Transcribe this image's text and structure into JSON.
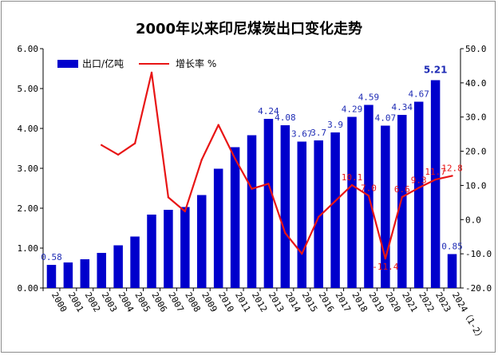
{
  "chart_data": {
    "type": "bar",
    "title": "2000年以来印尼煤炭出口变化走势",
    "categories": [
      "2000",
      "2001",
      "2002",
      "2003",
      "2004",
      "2005",
      "2006",
      "2007",
      "2008",
      "2009",
      "2010",
      "2011",
      "2012",
      "2013",
      "2014",
      "2015",
      "2016",
      "2017",
      "2018",
      "2019",
      "2020",
      "2021",
      "2022",
      "2023",
      "2024（1-2）"
    ],
    "series": [
      {
        "name": "出口/亿吨",
        "type": "bar",
        "axis": "left",
        "color": "#0000cc",
        "values": [
          0.58,
          0.64,
          0.72,
          0.88,
          1.07,
          1.29,
          1.84,
          1.96,
          2.03,
          2.33,
          2.99,
          3.53,
          3.83,
          4.24,
          4.08,
          3.67,
          3.7,
          3.9,
          4.29,
          4.59,
          4.07,
          4.34,
          4.67,
          5.21,
          0.85
        ]
      },
      {
        "name": "增长率 %",
        "type": "line",
        "axis": "right",
        "color": "#e81515",
        "values": [
          null,
          null,
          null,
          21.8,
          19.0,
          22.3,
          43.0,
          6.5,
          2.4,
          17.5,
          27.7,
          17.8,
          9.0,
          10.5,
          -3.9,
          -10.0,
          0.8,
          5.4,
          10.1,
          7.0,
          -11.4,
          6.6,
          9.3,
          11.7,
          12.8
        ]
      }
    ],
    "bar_labels": [
      {
        "index": 0,
        "text": "0.58",
        "bold": false
      },
      {
        "index": 13,
        "text": "4.24",
        "bold": false
      },
      {
        "index": 14,
        "text": "4.08",
        "bold": false
      },
      {
        "index": 15,
        "text": "3.67",
        "bold": false
      },
      {
        "index": 16,
        "text": "3.7",
        "bold": false
      },
      {
        "index": 17,
        "text": "3.9",
        "bold": false
      },
      {
        "index": 18,
        "text": "4.29",
        "bold": false
      },
      {
        "index": 19,
        "text": "4.59",
        "bold": false
      },
      {
        "index": 20,
        "text": "4.07",
        "bold": false
      },
      {
        "index": 21,
        "text": "4.34",
        "bold": false
      },
      {
        "index": 22,
        "text": "4.67",
        "bold": false
      },
      {
        "index": 23,
        "text": "5.21",
        "bold": true
      },
      {
        "index": 24,
        "text": "0.85",
        "bold": false
      }
    ],
    "growth_labels": [
      {
        "index": 18,
        "text": "10.1"
      },
      {
        "index": 19,
        "text": "7.0"
      },
      {
        "index": 20,
        "text": "-11.4"
      },
      {
        "index": 21,
        "text": "6.6"
      },
      {
        "index": 22,
        "text": "9.3"
      },
      {
        "index": 23,
        "text": "11.7"
      },
      {
        "index": 24,
        "text": "12.8"
      }
    ],
    "y_left": {
      "ylim": [
        0,
        6
      ],
      "ticks": [
        "0.00",
        "1.00",
        "2.00",
        "3.00",
        "4.00",
        "5.00",
        "6.00"
      ]
    },
    "y_right": {
      "ylim": [
        -20,
        50
      ],
      "ticks": [
        "-20.0",
        "-10.0",
        "0.0",
        "10.0",
        "20.0",
        "30.0",
        "40.0",
        "50.0"
      ]
    },
    "grid": false,
    "legend_position": "top-left"
  }
}
